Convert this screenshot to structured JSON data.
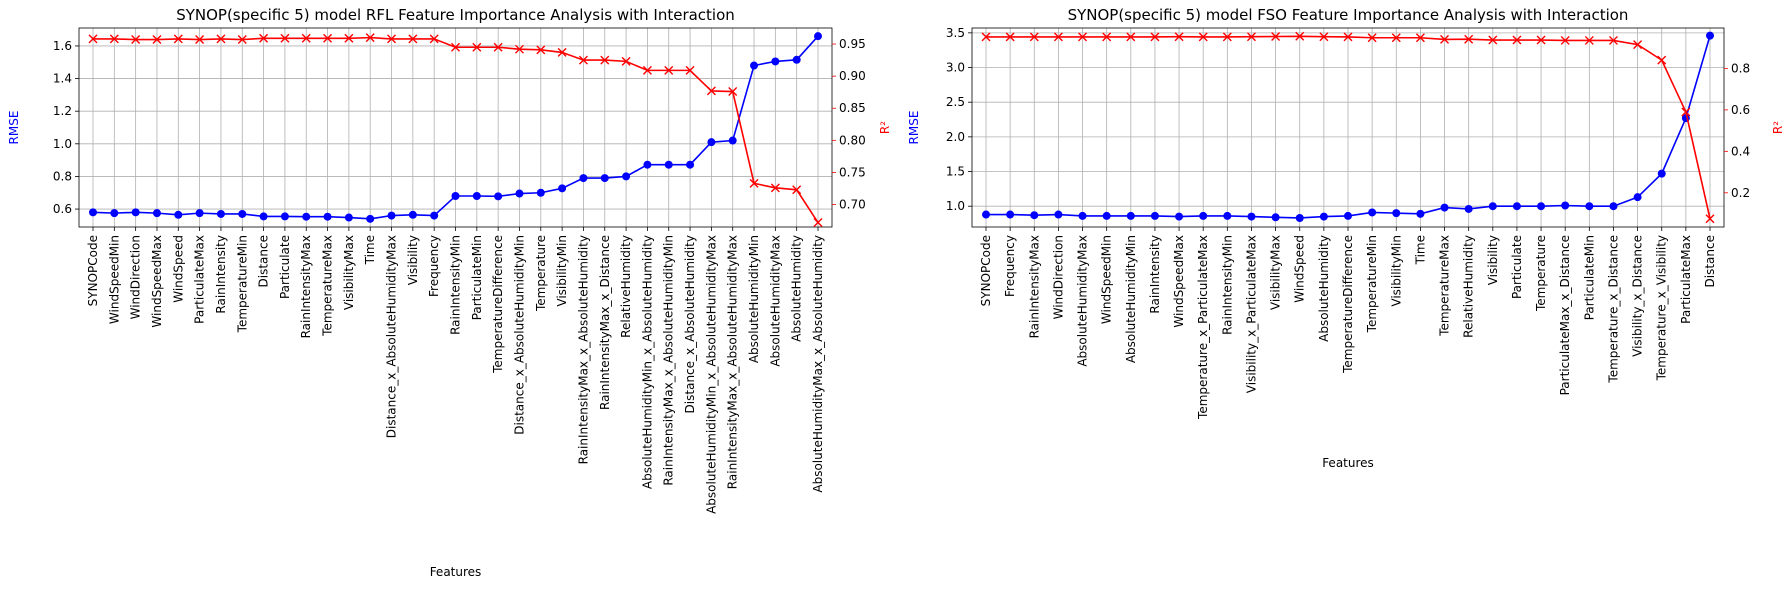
{
  "chart_data": [
    {
      "type": "line",
      "title": "SYNOP(specific 5) model RFL Feature Importance Analysis with Interaction",
      "xlabel": "Features",
      "ylabel_left": "RMSE",
      "ylabel_right": "R²",
      "grid": true,
      "ylim_left": [
        0.49,
        1.71
      ],
      "ylim_right": [
        0.665,
        0.975
      ],
      "yticks_left": [
        0.6,
        0.8,
        1.0,
        1.2,
        1.4,
        1.6
      ],
      "yticks_left_labels": [
        "0.6",
        "0.8",
        "1.0",
        "1.2",
        "1.4",
        "1.6"
      ],
      "yticks_right": [
        0.7,
        0.75,
        0.8,
        0.85,
        0.9,
        0.95
      ],
      "yticks_right_labels": [
        "0.70",
        "0.75",
        "0.80",
        "0.85",
        "0.90",
        "0.95"
      ],
      "categories": [
        "SYNOPCode",
        "WindSpeedMin",
        "WindDirection",
        "WindSpeedMax",
        "WindSpeed",
        "ParticulateMax",
        "RainIntensity",
        "TemperatureMin",
        "Distance",
        "Particulate",
        "RainIntensityMax",
        "TemperatureMax",
        "VisibilityMax",
        "Time",
        "Distance_x_AbsoluteHumidityMax",
        "Visibility",
        "Frequency",
        "RainIntensityMin",
        "ParticulateMin",
        "TemperatureDifference",
        "Distance_x_AbsoluteHumidityMin",
        "Temperature",
        "VisibilityMin",
        "RainIntensityMax_x_AbsoluteHumidity",
        "RainIntensityMax_x_Distance",
        "RelativeHumidity",
        "AbsoluteHumidityMin_x_AbsoluteHumidity",
        "RainIntensityMax_x_AbsoluteHumidityMin",
        "Distance_x_AbsoluteHumidity",
        "AbsoluteHumidityMin_x_AbsoluteHumidityMax",
        "RainIntensityMax_x_AbsoluteHumidityMax",
        "AbsoluteHumidityMin",
        "AbsoluteHumidityMax",
        "AbsoluteHumidity",
        "AbsoluteHumidityMax_x_AbsoluteHumidity"
      ],
      "series": [
        {
          "axis": "left",
          "color": "#0000ff",
          "marker": "circle",
          "values": [
            0.58,
            0.575,
            0.58,
            0.575,
            0.565,
            0.575,
            0.57,
            0.57,
            0.555,
            0.555,
            0.553,
            0.553,
            0.548,
            0.54,
            0.56,
            0.565,
            0.56,
            0.68,
            0.68,
            0.678,
            0.695,
            0.7,
            0.727,
            0.79,
            0.79,
            0.8,
            0.872,
            0.872,
            0.872,
            1.01,
            1.02,
            1.48,
            1.505,
            1.515,
            1.66
          ]
        },
        {
          "axis": "right",
          "color": "#ff0000",
          "marker": "x",
          "values": [
            0.958,
            0.958,
            0.957,
            0.957,
            0.958,
            0.957,
            0.958,
            0.957,
            0.959,
            0.959,
            0.959,
            0.959,
            0.959,
            0.96,
            0.958,
            0.958,
            0.958,
            0.945,
            0.945,
            0.945,
            0.942,
            0.941,
            0.937,
            0.925,
            0.925,
            0.923,
            0.909,
            0.909,
            0.909,
            0.877,
            0.876,
            0.733,
            0.726,
            0.723,
            0.672
          ]
        }
      ]
    },
    {
      "type": "line",
      "title": "SYNOP(specific 5) model FSO Feature Importance Analysis with Interaction",
      "xlabel": "Features",
      "ylabel_left": "RMSE",
      "ylabel_right": "R²",
      "grid": true,
      "ylim_left": [
        0.7,
        3.57
      ],
      "ylim_right": [
        0.035,
        0.995
      ],
      "yticks_left": [
        1.0,
        1.5,
        2.0,
        2.5,
        3.0,
        3.5
      ],
      "yticks_left_labels": [
        "1.0",
        "1.5",
        "2.0",
        "2.5",
        "3.0",
        "3.5"
      ],
      "yticks_right": [
        0.2,
        0.4,
        0.6,
        0.8
      ],
      "yticks_right_labels": [
        "0.2",
        "0.4",
        "0.6",
        "0.8"
      ],
      "categories": [
        "SYNOPCode",
        "Frequency",
        "RainIntensityMax",
        "WindDirection",
        "AbsoluteHumidityMax",
        "WindSpeedMin",
        "AbsoluteHumidityMin",
        "RainIntensity",
        "WindSpeedMax",
        "Temperature_x_ParticulateMax",
        "RainIntensityMin",
        "Visibility_x_ParticulateMax",
        "VisibilityMax",
        "WindSpeed",
        "AbsoluteHumidity",
        "TemperatureDifference",
        "TemperatureMin",
        "VisibilityMin",
        "Time",
        "TemperatureMax",
        "RelativeHumidity",
        "Visibility",
        "Particulate",
        "Temperature",
        "ParticulateMax_x_Distance",
        "ParticulateMin",
        "Temperature_x_Distance",
        "Visibility_x_Distance",
        "Temperature_x_Visibility",
        "ParticulateMax",
        "Distance"
      ],
      "series": [
        {
          "axis": "left",
          "color": "#0000ff",
          "marker": "circle",
          "values": [
            0.88,
            0.88,
            0.87,
            0.88,
            0.86,
            0.86,
            0.86,
            0.86,
            0.85,
            0.86,
            0.86,
            0.85,
            0.84,
            0.83,
            0.85,
            0.86,
            0.91,
            0.9,
            0.89,
            0.98,
            0.96,
            1.0,
            1.0,
            1.0,
            1.01,
            1.0,
            1.0,
            1.13,
            1.47,
            2.27,
            3.46
          ]
        },
        {
          "axis": "right",
          "color": "#ff0000",
          "marker": "x",
          "values": [
            0.952,
            0.952,
            0.952,
            0.952,
            0.952,
            0.952,
            0.952,
            0.952,
            0.953,
            0.952,
            0.952,
            0.953,
            0.954,
            0.955,
            0.953,
            0.952,
            0.948,
            0.948,
            0.948,
            0.94,
            0.941,
            0.937,
            0.937,
            0.937,
            0.935,
            0.935,
            0.935,
            0.915,
            0.84,
            0.59,
            0.075
          ]
        }
      ]
    }
  ]
}
